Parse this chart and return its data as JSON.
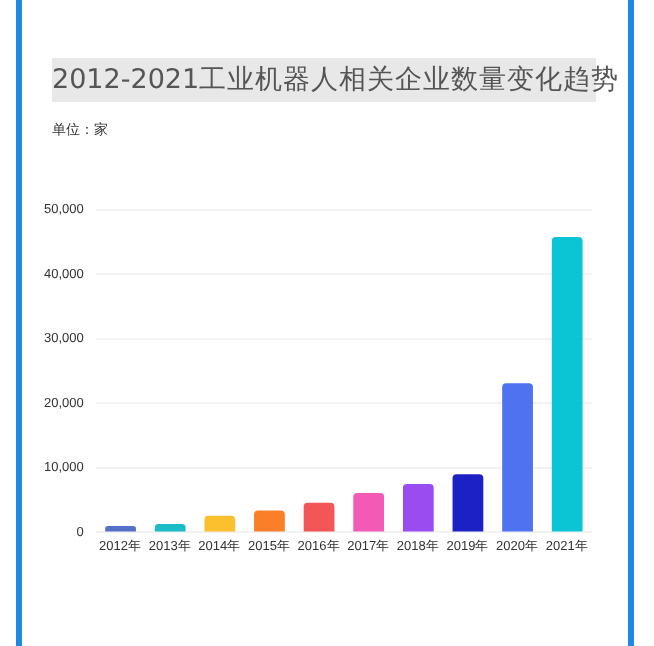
{
  "chart_data": {
    "type": "bar",
    "title": "2012-2021工业机器人相关企业数量变化趋势",
    "subtitle": "单位：家",
    "categories": [
      "2012年",
      "2013年",
      "2014年",
      "2015年",
      "2016年",
      "2017年",
      "2018年",
      "2019年",
      "2020年",
      "2021年"
    ],
    "values": [
      1000,
      1300,
      2600,
      3400,
      4600,
      6100,
      7500,
      9000,
      23100,
      45800
    ],
    "colors": [
      "#5470c6",
      "#1bbcc7",
      "#fac02e",
      "#fb7f29",
      "#f25656",
      "#f25ab5",
      "#9b4cf0",
      "#1c21c4",
      "#4f72f0",
      "#0bc5d5"
    ],
    "ylim": [
      0,
      50000
    ],
    "yticks": [
      {
        "value": 0,
        "label": "0"
      },
      {
        "value": 10000,
        "label": "10,000"
      },
      {
        "value": 20000,
        "label": "20,000"
      },
      {
        "value": 30000,
        "label": "30,000"
      },
      {
        "value": 40000,
        "label": "40,000"
      },
      {
        "value": 50000,
        "label": "50,000"
      }
    ],
    "grid": "y"
  }
}
